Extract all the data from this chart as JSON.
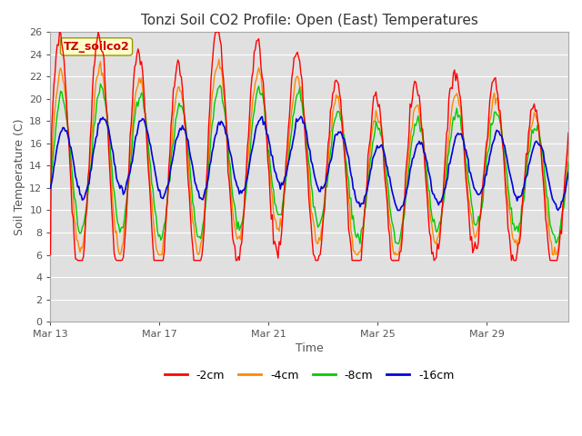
{
  "title": "Tonzi Soil CO2 Profile: Open (East) Temperatures",
  "xlabel": "Time",
  "ylabel": "Soil Temperature (C)",
  "ylim": [
    0,
    26
  ],
  "yticks": [
    0,
    2,
    4,
    6,
    8,
    10,
    12,
    14,
    16,
    18,
    20,
    22,
    24,
    26
  ],
  "x_tick_labels": [
    "Mar 13",
    "Mar 17",
    "Mar 21",
    "Mar 25",
    "Mar 29"
  ],
  "x_tick_positions": [
    0,
    4,
    8,
    12,
    16
  ],
  "legend_label": "TZ_soilco2",
  "legend_labels": [
    "-2cm",
    "-4cm",
    "-8cm",
    "-16cm"
  ],
  "line_colors": [
    "#ff0000",
    "#ff8800",
    "#00cc00",
    "#0000dd"
  ],
  "background_color": "#ffffff",
  "plot_bg_color": "#e0e0e0",
  "grid_color": "#ffffff",
  "period_days": 19
}
